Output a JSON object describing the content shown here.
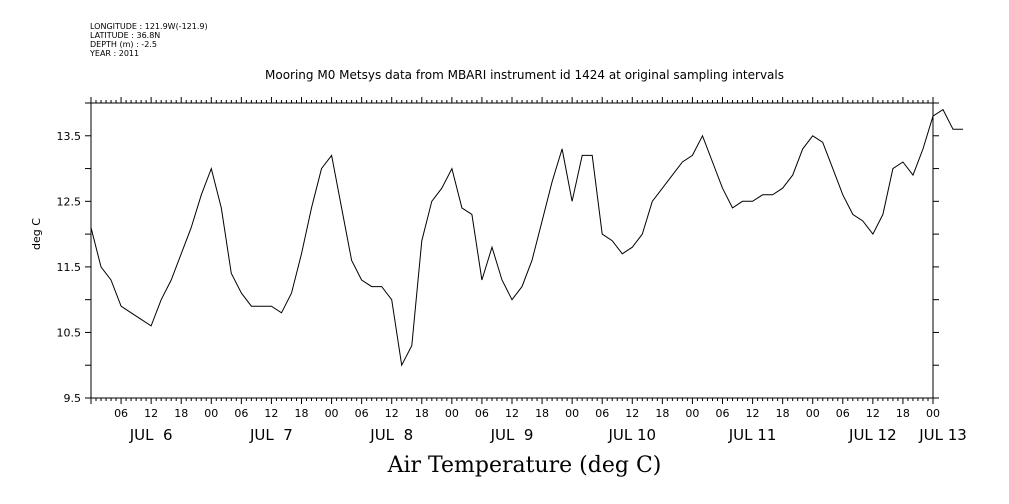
{
  "header": {
    "longitude": "LONGITUDE : 121.9W(-121.9)",
    "latitude": "LATITUDE : 36.8N",
    "depth": "DEPTH (m) : -2.5",
    "year": "YEAR : 2011"
  },
  "chart_data": {
    "type": "line",
    "title": "Mooring M0 Metsys data from MBARI instrument id 1424 at original sampling intervals",
    "xlabel": "Air Temperature (deg C)",
    "ylabel": "deg C",
    "ylim": [
      9.5,
      14.0
    ],
    "xlim_hours": [
      0,
      168
    ],
    "y_tick_labels": [
      "9.5",
      "10.5",
      "11.5",
      "12.5",
      "13.5"
    ],
    "x_hour_tick_labels": [
      "06",
      "12",
      "18",
      "00",
      "06",
      "12",
      "18",
      "00",
      "06",
      "12",
      "18",
      "00",
      "06",
      "12",
      "18",
      "00",
      "06",
      "12",
      "18",
      "00",
      "06",
      "12",
      "18",
      "00",
      "06",
      "12",
      "18",
      "00"
    ],
    "day_labels": [
      "JUL  6",
      "JUL  7",
      "JUL  8",
      "JUL  9",
      "JUL 10",
      "JUL 11",
      "JUL 12",
      "JUL 13"
    ],
    "grid": false,
    "x": [
      "Jul 6 00:00",
      "Jul 6 02:00",
      "Jul 6 04:00",
      "Jul 6 06:00",
      "Jul 6 08:00",
      "Jul 6 10:00",
      "Jul 6 12:00",
      "Jul 6 14:00",
      "Jul 6 16:00",
      "Jul 6 18:00",
      "Jul 6 20:00",
      "Jul 6 22:00",
      "Jul 7 00:00",
      "Jul 7 02:00",
      "Jul 7 04:00",
      "Jul 7 06:00",
      "Jul 7 08:00",
      "Jul 7 10:00",
      "Jul 7 12:00",
      "Jul 7 14:00",
      "Jul 7 16:00",
      "Jul 7 18:00",
      "Jul 7 20:00",
      "Jul 7 22:00",
      "Jul 8 00:00",
      "Jul 8 02:00",
      "Jul 8 04:00",
      "Jul 8 06:00",
      "Jul 8 08:00",
      "Jul 8 10:00",
      "Jul 8 12:00",
      "Jul 8 14:00",
      "Jul 8 16:00",
      "Jul 8 18:00",
      "Jul 8 20:00",
      "Jul 8 22:00",
      "Jul 9 00:00",
      "Jul 9 02:00",
      "Jul 9 04:00",
      "Jul 9 06:00",
      "Jul 9 08:00",
      "Jul 9 10:00",
      "Jul 9 12:00",
      "Jul 9 14:00",
      "Jul 9 16:00",
      "Jul 9 18:00",
      "Jul 9 20:00",
      "Jul 9 22:00",
      "Jul 10 00:00",
      "Jul 10 02:00",
      "Jul 10 04:00",
      "Jul 10 06:00",
      "Jul 10 08:00",
      "Jul 10 10:00",
      "Jul 10 12:00",
      "Jul 10 14:00",
      "Jul 10 16:00",
      "Jul 10 18:00",
      "Jul 10 20:00",
      "Jul 10 22:00",
      "Jul 11 00:00",
      "Jul 11 02:00",
      "Jul 11 04:00",
      "Jul 11 06:00",
      "Jul 11 08:00",
      "Jul 11 10:00",
      "Jul 11 12:00",
      "Jul 11 14:00",
      "Jul 11 16:00",
      "Jul 11 18:00",
      "Jul 11 20:00",
      "Jul 11 22:00",
      "Jul 12 00:00",
      "Jul 12 02:00",
      "Jul 12 04:00",
      "Jul 12 06:00",
      "Jul 12 08:00",
      "Jul 12 10:00",
      "Jul 12 12:00",
      "Jul 12 14:00",
      "Jul 12 16:00",
      "Jul 12 18:00",
      "Jul 12 20:00",
      "Jul 12 22:00",
      "Jul 13 00:00",
      "Jul 13 02:00",
      "Jul 13 04:00",
      "Jul 13 06:00"
    ],
    "y": [
      12.1,
      11.5,
      11.3,
      10.9,
      10.8,
      10.7,
      10.6,
      11.0,
      11.3,
      11.7,
      12.1,
      12.6,
      13.0,
      12.4,
      11.4,
      11.1,
      10.9,
      10.9,
      10.9,
      10.8,
      11.1,
      11.7,
      12.4,
      13.0,
      13.2,
      12.4,
      11.6,
      11.3,
      11.2,
      11.2,
      11.0,
      10.0,
      10.3,
      11.9,
      12.5,
      12.7,
      13.0,
      12.4,
      12.3,
      11.3,
      11.8,
      11.3,
      11.0,
      11.2,
      11.6,
      12.2,
      12.8,
      13.3,
      12.5,
      13.2,
      13.2,
      12.0,
      11.9,
      11.7,
      11.8,
      12.0,
      12.5,
      12.7,
      12.9,
      13.1,
      13.2,
      13.5,
      13.1,
      12.7,
      12.4,
      12.5,
      12.5,
      12.6,
      12.6,
      12.7,
      12.9,
      13.3,
      13.5,
      13.4,
      13.0,
      12.6,
      12.3,
      12.2,
      12.0,
      12.3,
      13.0,
      13.1,
      12.9,
      13.3,
      13.8,
      13.9,
      13.6,
      13.6
    ]
  }
}
